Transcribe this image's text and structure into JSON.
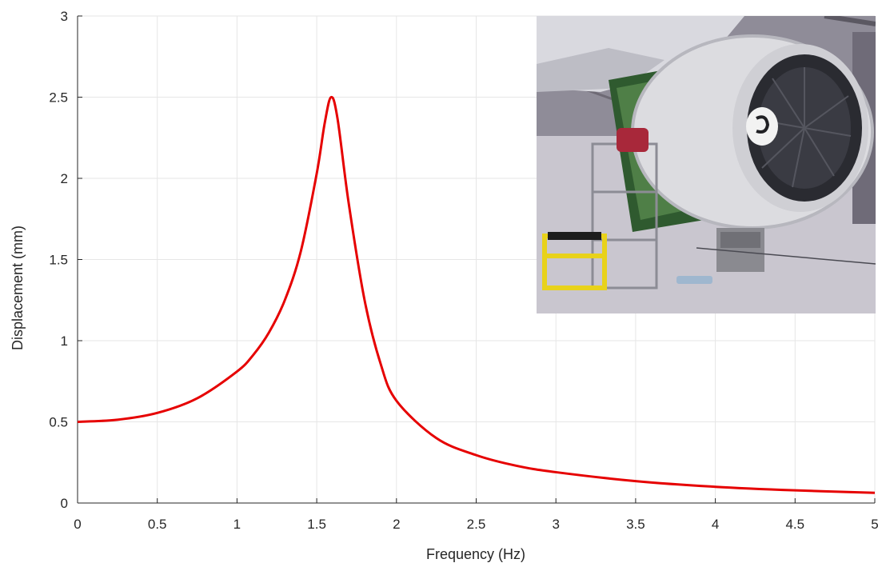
{
  "chart_data": {
    "type": "line",
    "title": "",
    "xlabel": "Frequency (Hz)",
    "ylabel": "Displacement (mm)",
    "xlim": [
      0,
      5
    ],
    "ylim": [
      0,
      3
    ],
    "xticks": [
      "0",
      "0.5",
      "1",
      "1.5",
      "2",
      "2.5",
      "3",
      "3.5",
      "4",
      "4.5",
      "5"
    ],
    "yticks": [
      "0",
      "0.5",
      "1",
      "1.5",
      "2",
      "2.5",
      "3"
    ],
    "grid": true,
    "series": [
      {
        "color": "#e60000",
        "x": [
          0,
          0.25,
          0.5,
          0.75,
          1.0,
          1.1,
          1.2,
          1.3,
          1.4,
          1.5,
          1.55,
          1.59,
          1.63,
          1.7,
          1.8,
          1.9,
          2.0,
          2.25,
          2.5,
          2.75,
          3.0,
          3.5,
          4.0,
          4.5,
          5.0
        ],
        "y": [
          0.5,
          0.513,
          0.555,
          0.645,
          0.81,
          0.91,
          1.05,
          1.25,
          1.55,
          2.03,
          2.34,
          2.5,
          2.37,
          1.85,
          1.25,
          0.86,
          0.63,
          0.4,
          0.295,
          0.23,
          0.19,
          0.135,
          0.1,
          0.078,
          0.063
        ]
      }
    ]
  },
  "inset_image": {
    "description_icon": "jet-engine-photo"
  }
}
